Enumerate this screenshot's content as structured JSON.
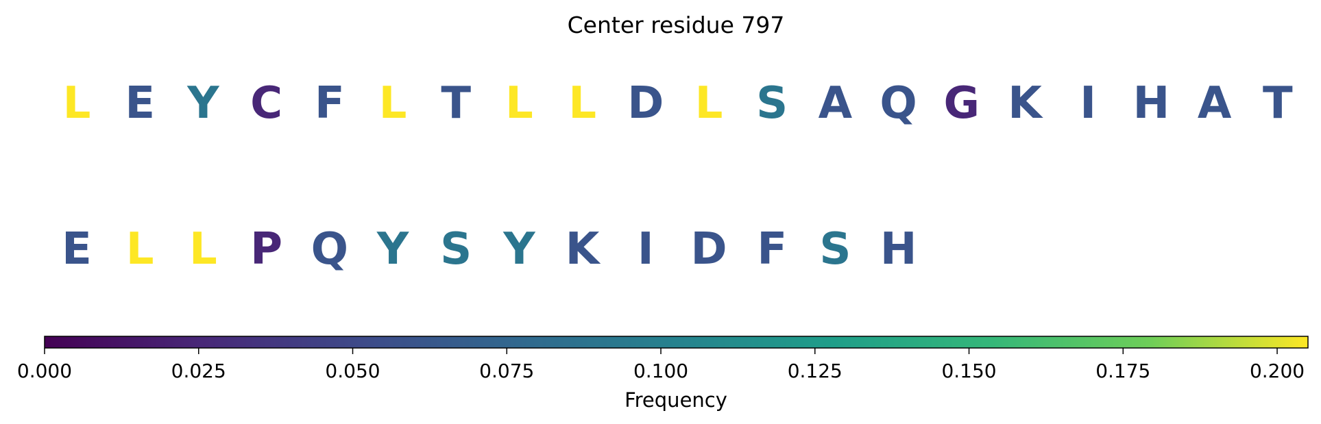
{
  "chart_data": {
    "type": "sequence-logo",
    "title": "Center residue 797",
    "residues": [
      {
        "letter": "L",
        "frequency": 0.205
      },
      {
        "letter": "E",
        "frequency": 0.06
      },
      {
        "letter": "Y",
        "frequency": 0.09
      },
      {
        "letter": "C",
        "frequency": 0.025
      },
      {
        "letter": "F",
        "frequency": 0.06
      },
      {
        "letter": "L",
        "frequency": 0.205
      },
      {
        "letter": "T",
        "frequency": 0.06
      },
      {
        "letter": "L",
        "frequency": 0.205
      },
      {
        "letter": "L",
        "frequency": 0.205
      },
      {
        "letter": "D",
        "frequency": 0.06
      },
      {
        "letter": "L",
        "frequency": 0.205
      },
      {
        "letter": "S",
        "frequency": 0.09
      },
      {
        "letter": "A",
        "frequency": 0.06
      },
      {
        "letter": "Q",
        "frequency": 0.06
      },
      {
        "letter": "G",
        "frequency": 0.025
      },
      {
        "letter": "K",
        "frequency": 0.06
      },
      {
        "letter": "I",
        "frequency": 0.06
      },
      {
        "letter": "H",
        "frequency": 0.06
      },
      {
        "letter": "A",
        "frequency": 0.06
      },
      {
        "letter": "T",
        "frequency": 0.06
      },
      {
        "letter": "E",
        "frequency": 0.06
      },
      {
        "letter": "L",
        "frequency": 0.205
      },
      {
        "letter": "L",
        "frequency": 0.205
      },
      {
        "letter": "P",
        "frequency": 0.025
      },
      {
        "letter": "Q",
        "frequency": 0.06
      },
      {
        "letter": "Y",
        "frequency": 0.09
      },
      {
        "letter": "S",
        "frequency": 0.09
      },
      {
        "letter": "Y",
        "frequency": 0.09
      },
      {
        "letter": "K",
        "frequency": 0.06
      },
      {
        "letter": "I",
        "frequency": 0.06
      },
      {
        "letter": "D",
        "frequency": 0.06
      },
      {
        "letter": "F",
        "frequency": 0.06
      },
      {
        "letter": "S",
        "frequency": 0.09
      },
      {
        "letter": "H",
        "frequency": 0.06
      }
    ],
    "residues_per_row": 20,
    "colorbar": {
      "label": "Frequency",
      "colormap": "viridis",
      "range": [
        0,
        0.205
      ],
      "ticks": [
        0,
        0.025,
        0.05,
        0.075,
        0.1,
        0.125,
        0.15,
        0.175,
        0.2
      ],
      "tick_labels": [
        "0.000",
        "0.025",
        "0.050",
        "0.075",
        "0.100",
        "0.125",
        "0.150",
        "0.175",
        "0.200"
      ],
      "orientation": "horizontal",
      "placement": "bottom"
    }
  }
}
